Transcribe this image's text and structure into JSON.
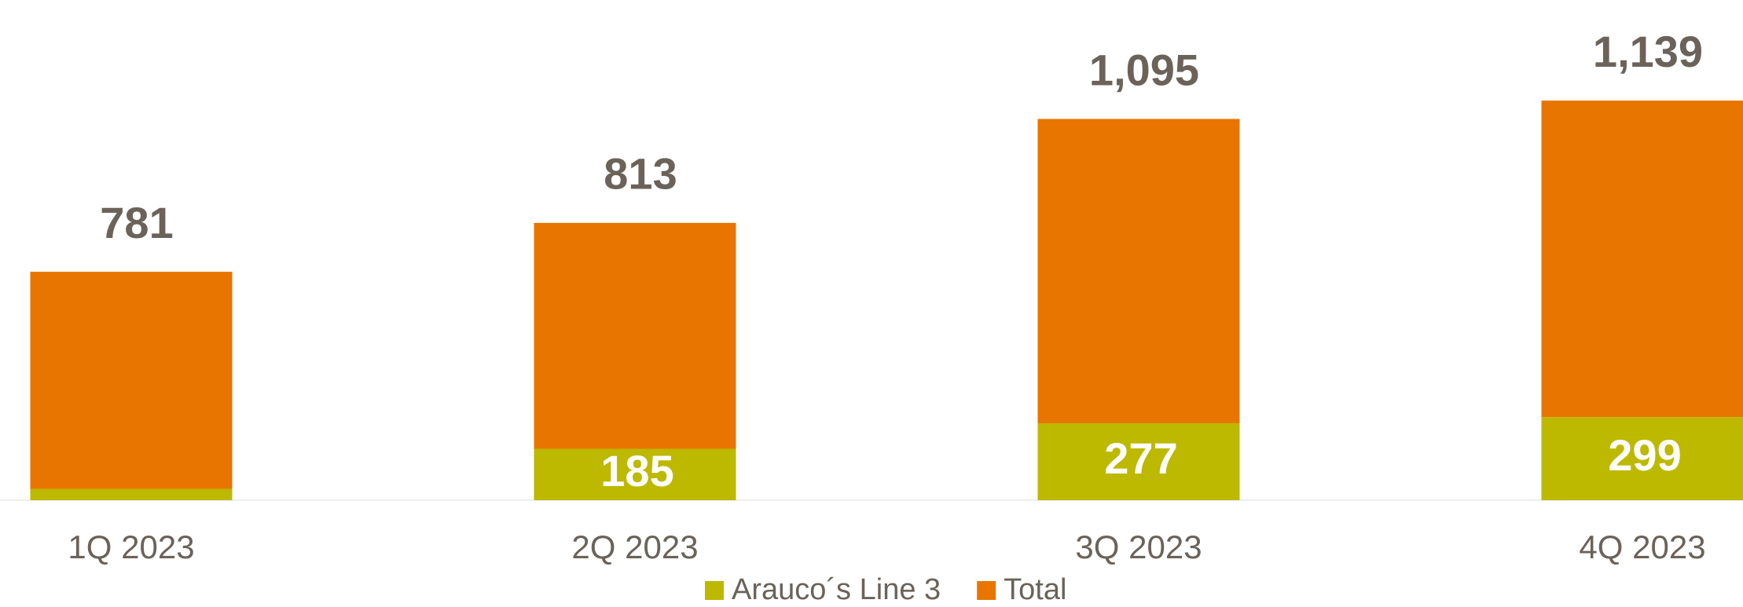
{
  "chart_data": {
    "type": "stacked_bar",
    "categories": [
      "1Q 2023",
      "2Q 2023",
      "3Q 2023",
      "4Q 2023"
    ],
    "series": [
      {
        "name": "Arauco´s Line 3",
        "color": "#bdb800",
        "values": [
          41,
          185,
          277,
          299
        ]
      },
      {
        "name": "Total",
        "color": "#e87500",
        "values": [
          781,
          813,
          1095,
          1139
        ],
        "value_labels": [
          "781",
          "813",
          "1,095",
          "1,139"
        ]
      }
    ],
    "ylim": [
      0,
      1800
    ],
    "legend": "bottom"
  }
}
